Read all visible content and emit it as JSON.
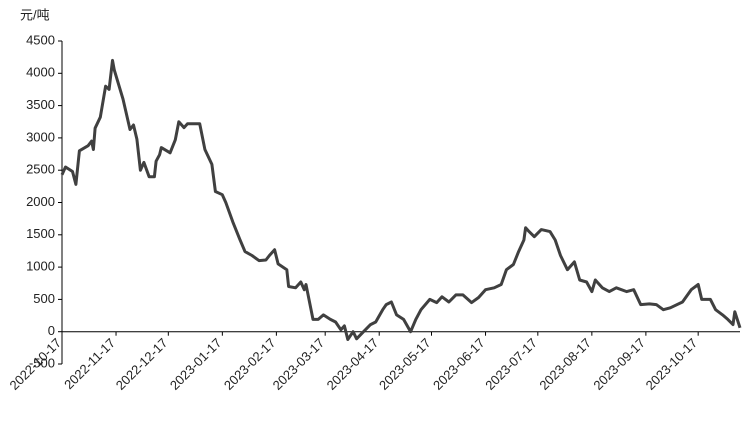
{
  "chart_data": {
    "type": "line",
    "unit_label": "元/吨",
    "x": [
      "2022-10-17",
      "2022-10-19",
      "2022-10-23",
      "2022-10-25",
      "2022-10-27",
      "2022-11-01",
      "2022-11-03",
      "2022-11-04",
      "2022-11-05",
      "2022-11-08",
      "2022-11-11",
      "2022-11-13",
      "2022-11-15",
      "2022-11-16",
      "2022-11-21",
      "2022-11-25",
      "2022-11-27",
      "2022-11-29",
      "2022-12-01",
      "2022-12-03",
      "2022-12-06",
      "2022-12-09",
      "2022-12-10",
      "2022-12-12",
      "2022-12-13",
      "2022-12-18",
      "2022-12-21",
      "2022-12-23",
      "2022-12-26",
      "2022-12-28",
      "2023-01-04",
      "2023-01-07",
      "2023-01-11",
      "2023-01-13",
      "2023-01-17",
      "2023-01-19",
      "2023-01-23",
      "2023-01-27",
      "2023-01-30",
      "2023-02-03",
      "2023-02-07",
      "2023-02-11",
      "2023-02-13",
      "2023-02-16",
      "2023-02-18",
      "2023-02-23",
      "2023-02-24",
      "2023-02-28",
      "2023-03-03",
      "2023-03-05",
      "2023-03-06",
      "2023-03-10",
      "2023-03-13",
      "2023-03-16",
      "2023-03-20",
      "2023-03-23",
      "2023-03-26",
      "2023-03-28",
      "2023-03-30",
      "2023-04-02",
      "2023-04-04",
      "2023-04-08",
      "2023-04-12",
      "2023-04-15",
      "2023-04-19",
      "2023-04-21",
      "2023-04-24",
      "2023-04-27",
      "2023-05-01",
      "2023-05-05",
      "2023-05-08",
      "2023-05-11",
      "2023-05-16",
      "2023-05-20",
      "2023-05-23",
      "2023-05-27",
      "2023-05-31",
      "2023-06-04",
      "2023-06-09",
      "2023-06-13",
      "2023-06-17",
      "2023-06-22",
      "2023-06-26",
      "2023-06-29",
      "2023-07-03",
      "2023-07-06",
      "2023-07-09",
      "2023-07-10",
      "2023-07-12",
      "2023-07-15",
      "2023-07-19",
      "2023-07-24",
      "2023-07-27",
      "2023-07-30",
      "2023-08-03",
      "2023-08-07",
      "2023-08-10",
      "2023-08-14",
      "2023-08-17",
      "2023-08-19",
      "2023-08-23",
      "2023-08-27",
      "2023-08-31",
      "2023-09-06",
      "2023-09-10",
      "2023-09-14",
      "2023-09-19",
      "2023-09-23",
      "2023-09-27",
      "2023-10-01",
      "2023-10-08",
      "2023-10-13",
      "2023-10-17",
      "2023-10-19",
      "2023-10-24",
      "2023-10-27",
      "2023-10-31",
      "2023-11-03",
      "2023-11-06",
      "2023-11-07",
      "2023-11-10"
    ],
    "values": [
      2430,
      2550,
      2480,
      2280,
      2800,
      2880,
      2950,
      2820,
      3150,
      3320,
      3800,
      3750,
      4200,
      4050,
      3600,
      3130,
      3200,
      2980,
      2500,
      2620,
      2400,
      2400,
      2640,
      2740,
      2850,
      2770,
      2970,
      3250,
      3160,
      3220,
      3220,
      2820,
      2590,
      2170,
      2120,
      2000,
      1700,
      1430,
      1240,
      1180,
      1100,
      1110,
      1180,
      1270,
      1050,
      960,
      700,
      680,
      770,
      650,
      730,
      190,
      190,
      260,
      190,
      150,
      30,
      90,
      -120,
      0,
      -110,
      0,
      110,
      150,
      340,
      420,
      460,
      260,
      190,
      0,
      190,
      340,
      500,
      450,
      540,
      460,
      570,
      570,
      450,
      530,
      650,
      680,
      730,
      960,
      1040,
      1240,
      1420,
      1610,
      1550,
      1470,
      1580,
      1550,
      1420,
      1180,
      960,
      1080,
      800,
      770,
      620,
      800,
      680,
      620,
      680,
      620,
      650,
      420,
      430,
      420,
      340,
      370,
      460,
      650,
      730,
      500,
      500,
      340,
      260,
      190,
      110,
      310,
      60
    ],
    "color": "#404040",
    "xlim": [
      "2022-10-17",
      "2023-11-10"
    ],
    "xticks": [
      "2022-10-17",
      "2022-11-17",
      "2022-12-17",
      "2023-01-17",
      "2023-02-17",
      "2023-03-17",
      "2023-04-17",
      "2023-05-17",
      "2023-06-17",
      "2023-07-17",
      "2023-08-17",
      "2023-09-17",
      "2023-10-17"
    ],
    "ylim": [
      -500,
      4500
    ],
    "yticks": [
      -500,
      0,
      500,
      1000,
      1500,
      2000,
      2500,
      3000,
      3500,
      4000,
      4500
    ]
  }
}
